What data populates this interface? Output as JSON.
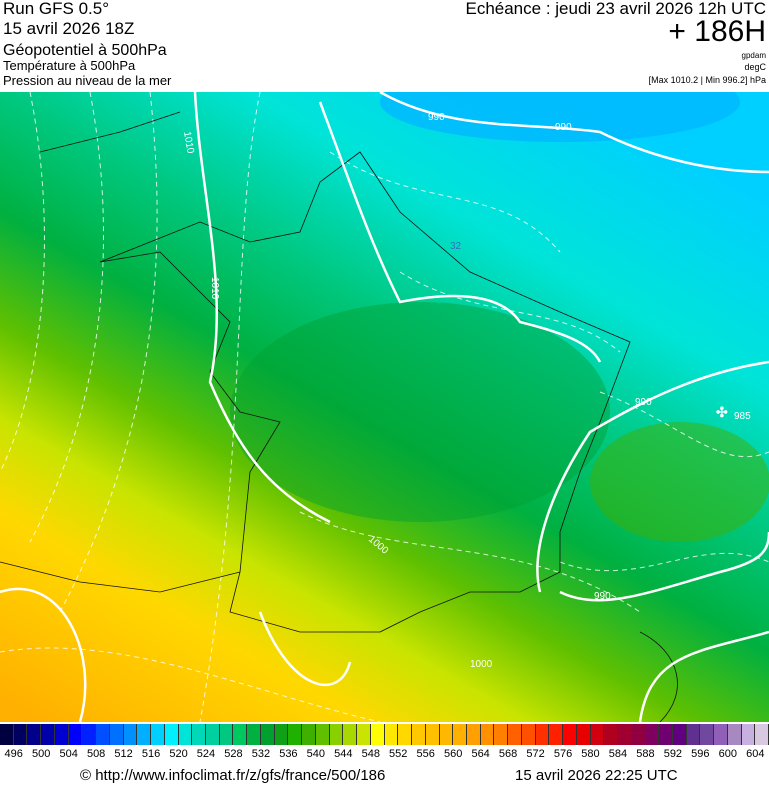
{
  "header": {
    "run": "Run GFS 0.5°",
    "run_date": "15 avril 2026 18Z",
    "field1": "Géopotentiel à 500hPa",
    "field2": "Température à 500hPa",
    "field3": "Pression au niveau de la mer",
    "echeance": "Echéance : jeudi 23 avril 2026 12h UTC",
    "lead": "+ 186H",
    "unit1": "gpdam",
    "unit2": "degC",
    "pressure_range": "[Max 1010.2 | Min 996.2] hPa"
  },
  "map": {
    "isobar_labels": [
      "1010",
      "1010",
      "990",
      "990",
      "990",
      "985",
      "990",
      "1000",
      "1000"
    ],
    "temperature_label": "32"
  },
  "legend": {
    "ticks": [
      "496",
      "500",
      "504",
      "508",
      "512",
      "516",
      "520",
      "524",
      "528",
      "532",
      "536",
      "540",
      "544",
      "548",
      "552",
      "556",
      "560",
      "564",
      "568",
      "572",
      "576",
      "580",
      "584",
      "588",
      "592",
      "596",
      "600",
      "604"
    ],
    "colors": [
      "#000040",
      "#000060",
      "#00008b",
      "#0000a8",
      "#0000d0",
      "#0000ff",
      "#0020ff",
      "#0050ff",
      "#0070ff",
      "#0090ff",
      "#00b0ff",
      "#00d0ff",
      "#00f0ff",
      "#00e4d8",
      "#00d8b8",
      "#00d0a0",
      "#00c880",
      "#00c860",
      "#00b040",
      "#00a030",
      "#10a018",
      "#20b000",
      "#40b000",
      "#60c000",
      "#88d000",
      "#a8d800",
      "#c8e400",
      "#ffff00",
      "#ffe800",
      "#ffd800",
      "#ffc800",
      "#ffc000",
      "#ffb800",
      "#ffb000",
      "#ffa000",
      "#ff9000",
      "#ff8000",
      "#ff6000",
      "#ff5000",
      "#ff3000",
      "#ff2000",
      "#ff0000",
      "#e80000",
      "#d00010",
      "#b00020",
      "#a00030",
      "#900040",
      "#800060",
      "#700070",
      "#600080",
      "#603090",
      "#7048a0",
      "#9060b8",
      "#a888c0",
      "#c8b0e0",
      "#d8c8e0"
    ]
  },
  "footer": {
    "url": "© http://www.infoclimat.fr/z/gfs/france/500/186",
    "generated": "15 avril 2026 22:25 UTC"
  }
}
